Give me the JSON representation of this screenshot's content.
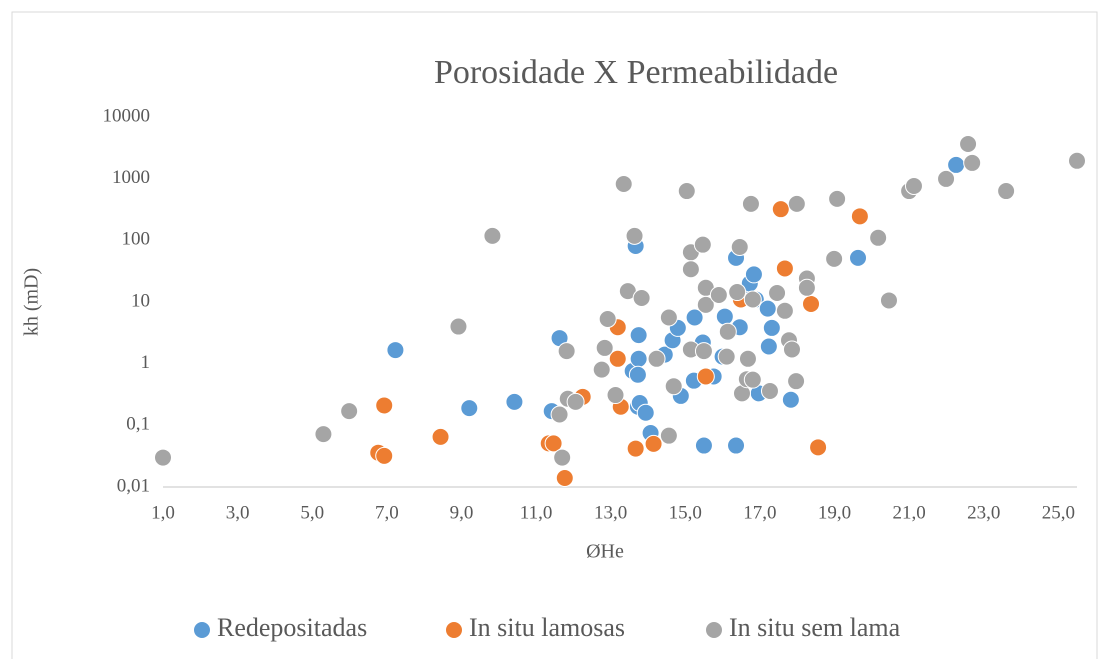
{
  "chart_data": {
    "type": "scatter",
    "title": "Porosidade X Permeabilidade",
    "x_label": "ØHe",
    "y_label": "kh (mD)",
    "y_scale": "log",
    "grid": false,
    "legend": "bottom",
    "xlim": [
      1,
      25.5
    ],
    "xticks": [
      {
        "value": 1,
        "label": "1,0"
      },
      {
        "value": 3,
        "label": "3,0"
      },
      {
        "value": 5,
        "label": "5,0"
      },
      {
        "value": 7,
        "label": "7,0"
      },
      {
        "value": 9,
        "label": "9,0"
      },
      {
        "value": 11,
        "label": "11,0"
      },
      {
        "value": 13,
        "label": "13,0"
      },
      {
        "value": 15,
        "label": "15,0"
      },
      {
        "value": 17,
        "label": "17,0"
      },
      {
        "value": 19,
        "label": "19,0"
      },
      {
        "value": 21,
        "label": "21,0"
      },
      {
        "value": 23,
        "label": "23,0"
      },
      {
        "value": 25,
        "label": "25,0"
      }
    ],
    "ylim": [
      0.01,
      10000
    ],
    "yticks": [
      {
        "value": 0.01,
        "label": "0,01"
      },
      {
        "value": 0.1,
        "label": "0,1"
      },
      1,
      10,
      100,
      1000,
      10000
    ],
    "series": [
      {
        "name": "Redepositadas",
        "color": "#5b9bd5",
        "x": [
          7.23,
          9.21,
          10.42,
          11.42,
          11.63,
          13.67,
          13.59,
          13.73,
          13.78,
          13.75,
          13.75,
          13.73,
          13.94,
          14.07,
          14.45,
          14.66,
          14.8,
          14.88,
          15.25,
          15.23,
          15.47,
          15.5,
          15.76,
          16.0,
          16.06,
          16.36,
          16.46,
          16.36,
          16.68,
          16.73,
          16.84,
          16.89,
          16.97,
          17.21,
          17.32,
          17.24,
          17.83,
          19.63,
          22.26
        ],
        "values": [
          1.66,
          0.19,
          0.24,
          0.17,
          2.6,
          81,
          0.76,
          0.2,
          0.23,
          2.9,
          1.2,
          0.66,
          0.16,
          0.075,
          1.4,
          2.4,
          3.8,
          0.3,
          5.6,
          0.53,
          2.2,
          0.047,
          0.62,
          1.3,
          5.8,
          52,
          3.9,
          0.047,
          12.5,
          20,
          28,
          11,
          0.33,
          7.8,
          3.8,
          1.9,
          0.26,
          52,
          1670
        ]
      },
      {
        "name": "In situ lamosas",
        "color": "#ed7d31",
        "x": [
          6.77,
          6.93,
          6.93,
          8.44,
          11.34,
          11.47,
          11.77,
          12.25,
          13.19,
          13.19,
          13.27,
          13.67,
          14.15,
          15.55,
          16.49,
          17.56,
          17.67,
          18.37,
          18.56,
          19.68
        ],
        "values": [
          0.036,
          0.21,
          0.032,
          0.065,
          0.051,
          0.051,
          0.014,
          0.29,
          3.9,
          1.2,
          0.2,
          0.042,
          0.05,
          0.62,
          11,
          320,
          35,
          9.3,
          0.044,
          245
        ]
      },
      {
        "name": "In situ sem lama",
        "color": "#a5a5a5",
        "x": [
          1.0,
          5.3,
          5.99,
          8.92,
          9.83,
          11.63,
          11.7,
          11.82,
          11.85,
          12.06,
          12.76,
          12.84,
          12.92,
          13.13,
          13.35,
          13.46,
          13.64,
          13.83,
          14.23,
          14.56,
          14.56,
          14.69,
          15.04,
          15.15,
          15.15,
          15.47,
          15.15,
          15.5,
          15.55,
          15.55,
          15.9,
          16.14,
          16.11,
          16.39,
          16.46,
          16.52,
          16.65,
          16.68,
          16.81,
          16.76,
          16.81,
          17.27,
          17.46,
          17.67,
          17.78,
          17.86,
          17.97,
          17.99,
          18.26,
          18.26,
          18.99,
          19.07,
          20.17,
          20.46,
          21.0,
          21.13,
          21.99,
          22.58,
          22.69,
          23.6,
          25.5
        ],
        "values": [
          0.03,
          0.072,
          0.17,
          4.0,
          118,
          0.15,
          0.03,
          1.6,
          0.27,
          0.24,
          0.8,
          1.8,
          5.3,
          0.31,
          820,
          15,
          118,
          11.6,
          1.2,
          0.068,
          5.6,
          0.43,
          630,
          64,
          34,
          85,
          1.7,
          1.6,
          17,
          9,
          13,
          3.3,
          1.3,
          14.5,
          78,
          0.33,
          0.56,
          1.2,
          0.55,
          390,
          11,
          0.36,
          14,
          7.2,
          2.4,
          1.7,
          0.52,
          390,
          24,
          17,
          50,
          470,
          110,
          10.6,
          630,
          760,
          990,
          3650,
          1800,
          630,
          1950
        ]
      }
    ]
  }
}
